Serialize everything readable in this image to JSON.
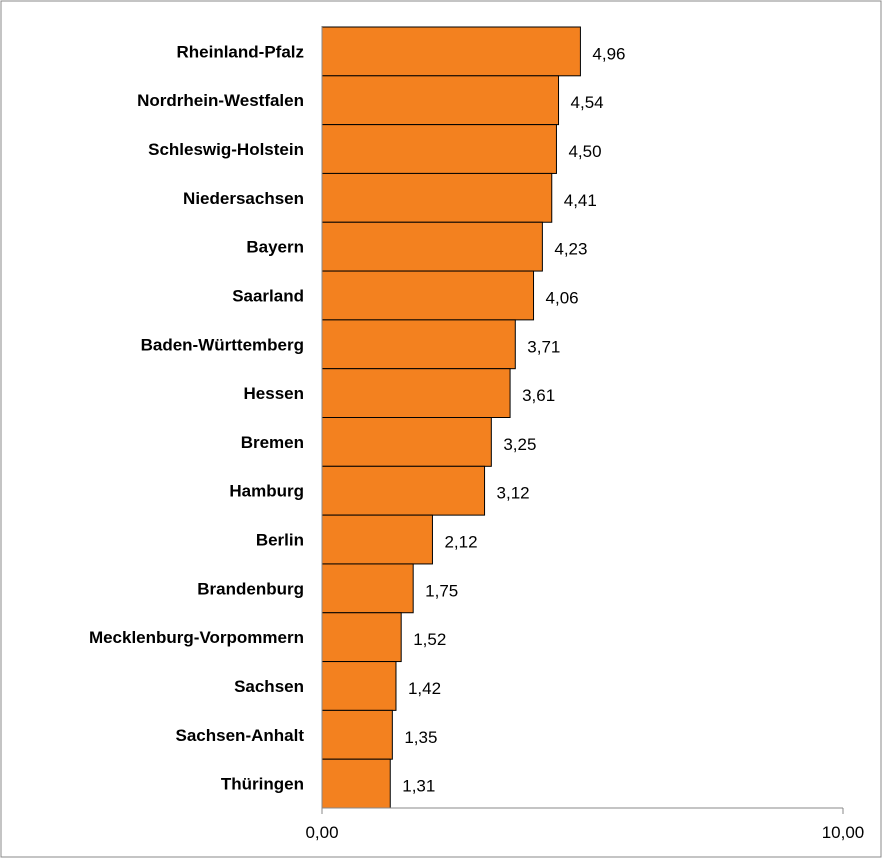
{
  "chart_data": {
    "type": "bar",
    "orientation": "horizontal",
    "categories": [
      "Rheinland-Pfalz",
      "Nordrhein-Westfalen",
      "Schleswig-Holstein",
      "Niedersachsen",
      "Bayern",
      "Saarland",
      "Baden-Württemberg",
      "Hessen",
      "Bremen",
      "Hamburg",
      "Berlin",
      "Brandenburg",
      "Mecklenburg-Vorpommern",
      "Sachsen",
      "Sachsen-Anhalt",
      "Thüringen"
    ],
    "values": [
      4.96,
      4.54,
      4.5,
      4.41,
      4.23,
      4.06,
      3.71,
      3.61,
      3.25,
      3.12,
      2.12,
      1.75,
      1.52,
      1.42,
      1.35,
      1.31
    ],
    "value_labels": [
      "4,96",
      "4,54",
      "4,50",
      "4,41",
      "4,23",
      "4,06",
      "3,71",
      "3,61",
      "3,25",
      "3,12",
      "2,12",
      "1,75",
      "1,52",
      "1,42",
      "1,35",
      "1,31"
    ],
    "xlim": [
      0,
      10
    ],
    "xticks": [
      0,
      10
    ],
    "xtick_labels": [
      "0,00",
      "10,00"
    ],
    "title": "",
    "xlabel": "",
    "ylabel": "",
    "grid": false,
    "bar_color": "#f3811f",
    "bar_edge_color": "#000000",
    "frame_color": "#888888"
  }
}
